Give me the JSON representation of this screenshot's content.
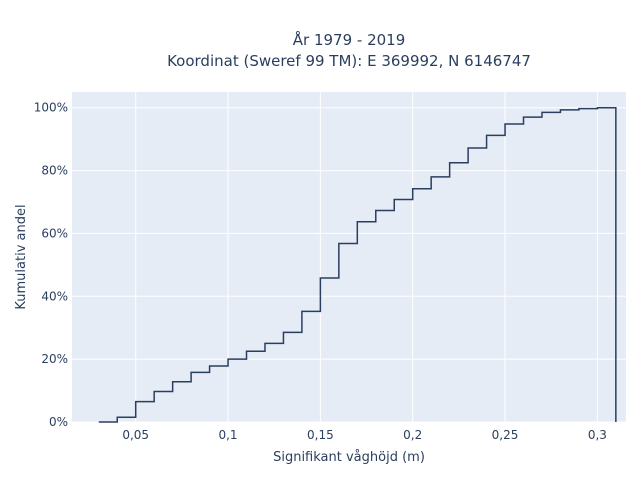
{
  "chart_data": {
    "type": "line",
    "line_shape": "step",
    "title_line1": "År 1979 - 2019",
    "title_line2": "Koordinat (Sweref 99 TM): E 369992, N 6146747",
    "xlabel": "Signifikant våghöjd (m)",
    "ylabel": "Kumulativ andel",
    "xlim": [
      0.0155,
      0.3155
    ],
    "ylim": [
      0,
      1.05
    ],
    "x_ticks": [
      0.05,
      0.1,
      0.15,
      0.2,
      0.25,
      0.3
    ],
    "x_tick_labels": [
      "0,05",
      "0,1",
      "0,15",
      "0,2",
      "0,25",
      "0,3"
    ],
    "y_ticks": [
      0,
      0.2,
      0.4,
      0.6,
      0.8,
      1.0
    ],
    "y_tick_labels": [
      "0%",
      "20%",
      "40%",
      "60%",
      "80%",
      "100%"
    ],
    "grid": true,
    "colors": {
      "plot_bg": "#e5ecf6",
      "grid": "#ffffff",
      "line": "#2a3f5f",
      "text": "#2a3f5f"
    },
    "series": [
      {
        "bin_edges": [
          0.03,
          0.04,
          0.05,
          0.06,
          0.07,
          0.08,
          0.09,
          0.1,
          0.11,
          0.12,
          0.13,
          0.14,
          0.15,
          0.16,
          0.17,
          0.18,
          0.19,
          0.2,
          0.21,
          0.22,
          0.23,
          0.24,
          0.25,
          0.26,
          0.27,
          0.28,
          0.29,
          0.3,
          0.31
        ],
        "cumulative": [
          0.0,
          0.015,
          0.065,
          0.097,
          0.128,
          0.158,
          0.178,
          0.2,
          0.225,
          0.25,
          0.285,
          0.352,
          0.458,
          0.568,
          0.637,
          0.673,
          0.708,
          0.742,
          0.78,
          0.825,
          0.872,
          0.912,
          0.948,
          0.97,
          0.985,
          0.993,
          0.997,
          1.0
        ]
      }
    ]
  }
}
